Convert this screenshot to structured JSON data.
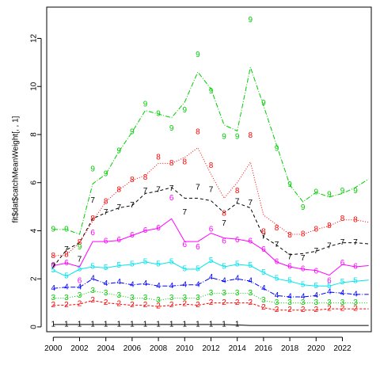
{
  "chart_data": {
    "type": "line",
    "title": "",
    "xlabel": "",
    "ylabel": "fit$dat$catchMeanWeight[, , 1]",
    "xlim": [
      1999.5,
      2024.2
    ],
    "ylim": [
      -0.2,
      13.3
    ],
    "x_ticks": [
      2000,
      2002,
      2004,
      2006,
      2008,
      2010,
      2012,
      2014,
      2016,
      2018,
      2020,
      2022
    ],
    "y_ticks": [
      0,
      2,
      4,
      6,
      8,
      10,
      12
    ],
    "series": [
      {
        "name": "1",
        "color": "#000000",
        "dash": "none",
        "line_x": [
          2000,
          2001,
          2002,
          2003,
          2004,
          2005,
          2006,
          2007,
          2008,
          2009,
          2010,
          2011,
          2012,
          2013,
          2014,
          2015,
          2016,
          2017,
          2018,
          2019,
          2020,
          2021,
          2022,
          2023,
          2024
        ],
        "line_y": [
          0.1,
          0.1,
          0.1,
          0.1,
          0.1,
          0.1,
          0.1,
          0.1,
          0.1,
          0.1,
          0.1,
          0.1,
          0.1,
          0.1,
          0.08,
          0.06,
          0.06,
          0.06,
          0.06,
          0.06,
          0.06,
          0.06,
          0.06,
          0.06,
          0.06
        ],
        "points_x": [
          2000,
          2001,
          2002,
          2003,
          2004,
          2005,
          2006,
          2007,
          2008,
          2009,
          2010,
          2011,
          2012,
          2013,
          2014
        ],
        "points_y": [
          0.1,
          0.1,
          0.1,
          0.1,
          0.1,
          0.1,
          0.1,
          0.1,
          0.1,
          0.1,
          0.1,
          0.1,
          0.1,
          0.1,
          0.1
        ]
      },
      {
        "name": "2",
        "color": "#ff0000",
        "dash": "3,2",
        "line_x": [
          2000,
          2001,
          2002,
          2003,
          2004,
          2005,
          2006,
          2007,
          2008,
          2009,
          2010,
          2011,
          2012,
          2013,
          2014,
          2015,
          2016,
          2017,
          2018,
          2019,
          2020,
          2021,
          2022,
          2023,
          2024
        ],
        "line_y": [
          0.9,
          0.9,
          0.95,
          1.1,
          1.0,
          0.95,
          0.9,
          0.9,
          0.85,
          0.9,
          0.95,
          0.9,
          1.0,
          1.0,
          1.0,
          1.0,
          0.8,
          0.7,
          0.7,
          0.7,
          0.7,
          0.75,
          0.75,
          0.75,
          0.75
        ],
        "points_x": [
          2000,
          2001,
          2002,
          2003,
          2004,
          2005,
          2006,
          2007,
          2008,
          2009,
          2010,
          2011,
          2012,
          2013,
          2014,
          2015,
          2016,
          2017,
          2018,
          2019,
          2020,
          2021,
          2022,
          2023
        ],
        "points_y": [
          0.9,
          0.9,
          0.95,
          1.1,
          1.0,
          0.95,
          0.9,
          0.9,
          0.85,
          0.9,
          0.95,
          0.9,
          1.0,
          1.0,
          1.0,
          1.0,
          0.8,
          0.7,
          0.7,
          0.7,
          0.7,
          0.75,
          0.75,
          0.75
        ]
      },
      {
        "name": "3",
        "color": "#00cd00",
        "dash": "1,2",
        "line_x": [
          2000,
          2001,
          2002,
          2003,
          2004,
          2005,
          2006,
          2007,
          2008,
          2009,
          2010,
          2011,
          2012,
          2013,
          2014,
          2015,
          2016,
          2017,
          2018,
          2019,
          2020,
          2021,
          2022,
          2023,
          2024
        ],
        "line_y": [
          1.2,
          1.2,
          1.3,
          1.5,
          1.4,
          1.3,
          1.2,
          1.2,
          1.1,
          1.2,
          1.2,
          1.2,
          1.4,
          1.4,
          1.4,
          1.4,
          1.1,
          1.0,
          1.0,
          1.0,
          1.0,
          1.0,
          1.0,
          1.0,
          1.0
        ],
        "points_x": [
          2000,
          2001,
          2002,
          2003,
          2004,
          2005,
          2006,
          2007,
          2008,
          2009,
          2010,
          2011,
          2012,
          2013,
          2014,
          2015,
          2016,
          2017,
          2018,
          2019,
          2020,
          2021,
          2022,
          2023
        ],
        "points_y": [
          1.2,
          1.2,
          1.3,
          1.5,
          1.4,
          1.3,
          1.2,
          1.2,
          1.1,
          1.2,
          1.2,
          1.2,
          1.4,
          1.4,
          1.4,
          1.4,
          1.1,
          1.0,
          1.0,
          1.0,
          1.0,
          1.0,
          1.0,
          1.0
        ]
      },
      {
        "name": "4",
        "color": "#0000ff",
        "dash": "6,2,1,2",
        "line_x": [
          2000,
          2001,
          2002,
          2003,
          2004,
          2005,
          2006,
          2007,
          2008,
          2009,
          2010,
          2011,
          2012,
          2013,
          2014,
          2015,
          2016,
          2017,
          2018,
          2019,
          2020,
          2021,
          2022,
          2023,
          2024
        ],
        "line_y": [
          1.6,
          1.65,
          1.65,
          2.0,
          1.8,
          1.85,
          1.75,
          1.8,
          1.7,
          1.7,
          1.75,
          1.75,
          2.05,
          1.9,
          2.0,
          1.9,
          1.6,
          1.3,
          1.25,
          1.25,
          1.3,
          1.45,
          1.4,
          1.35,
          1.35
        ],
        "points_x": [
          2000,
          2001,
          2002,
          2003,
          2004,
          2005,
          2006,
          2007,
          2008,
          2009,
          2010,
          2011,
          2012,
          2013,
          2014,
          2015,
          2016,
          2017,
          2018,
          2019,
          2020,
          2021,
          2022,
          2023
        ],
        "points_y": [
          1.6,
          1.65,
          1.65,
          2.0,
          1.8,
          1.85,
          1.75,
          1.8,
          1.7,
          1.7,
          1.75,
          1.75,
          2.05,
          1.9,
          2.0,
          1.9,
          1.6,
          1.3,
          1.25,
          1.25,
          1.3,
          1.45,
          1.4,
          1.35
        ]
      },
      {
        "name": "5",
        "color": "#00e5ee",
        "dash": "none",
        "line_x": [
          2000,
          2001,
          2002,
          2003,
          2004,
          2005,
          2006,
          2007,
          2008,
          2009,
          2010,
          2011,
          2012,
          2013,
          2014,
          2015,
          2016,
          2017,
          2018,
          2019,
          2020,
          2021,
          2022,
          2023,
          2024
        ],
        "line_y": [
          2.35,
          2.1,
          2.4,
          2.5,
          2.45,
          2.55,
          2.6,
          2.7,
          2.6,
          2.7,
          2.4,
          2.4,
          2.75,
          2.5,
          2.6,
          2.55,
          2.25,
          2.0,
          1.9,
          1.75,
          1.7,
          1.7,
          1.85,
          1.9,
          1.95
        ],
        "points_x": [
          2000,
          2001,
          2002,
          2003,
          2004,
          2005,
          2006,
          2007,
          2008,
          2009,
          2010,
          2011,
          2012,
          2013,
          2014,
          2015,
          2016,
          2017,
          2018,
          2019,
          2020,
          2021,
          2022,
          2023
        ],
        "points_y": [
          2.35,
          2.1,
          2.4,
          2.5,
          2.45,
          2.55,
          2.6,
          2.7,
          2.6,
          2.7,
          2.4,
          2.4,
          2.75,
          2.5,
          2.6,
          2.55,
          2.25,
          2.0,
          1.9,
          1.75,
          1.7,
          1.7,
          1.85,
          1.9
        ]
      },
      {
        "name": "6",
        "color": "#ff00ff",
        "dash": "none",
        "line_x": [
          2000,
          2001,
          2002,
          2003,
          2004,
          2005,
          2006,
          2007,
          2008,
          2009,
          2010,
          2011,
          2012,
          2013,
          2014,
          2015,
          2016,
          2017,
          2018,
          2019,
          2020,
          2021,
          2022,
          2023,
          2024
        ],
        "line_y": [
          2.55,
          2.65,
          2.5,
          3.55,
          3.55,
          3.6,
          3.8,
          4.0,
          4.1,
          4.5,
          3.55,
          3.55,
          3.9,
          3.7,
          3.65,
          3.55,
          3.2,
          2.7,
          2.5,
          2.4,
          2.35,
          2.15,
          2.6,
          2.5,
          2.55
        ],
        "points_x": [
          2000,
          2001,
          2002,
          2003,
          2004,
          2005,
          2006,
          2007,
          2008,
          2009,
          2010,
          2011,
          2012,
          2013,
          2014,
          2015,
          2016,
          2017,
          2018,
          2019,
          2020,
          2021,
          2022,
          2023
        ],
        "points_y": [
          2.55,
          2.65,
          1.9,
          3.9,
          3.55,
          3.6,
          3.8,
          4.0,
          4.1,
          5.35,
          3.4,
          3.3,
          4.05,
          3.55,
          3.6,
          3.55,
          3.2,
          2.7,
          2.5,
          2.4,
          2.3,
          1.9,
          2.65,
          2.5
        ]
      },
      {
        "name": "7",
        "color": "#000000",
        "dash": "4,3",
        "line_x": [
          2000,
          2001,
          2002,
          2003,
          2004,
          2005,
          2006,
          2007,
          2008,
          2009,
          2010,
          2011,
          2012,
          2013,
          2014,
          2015,
          2016,
          2017,
          2018,
          2019,
          2020,
          2021,
          2022,
          2023,
          2024
        ],
        "line_y": [
          2.5,
          3.2,
          3.5,
          4.5,
          4.75,
          4.95,
          5.05,
          5.55,
          5.65,
          5.8,
          5.35,
          5.35,
          5.25,
          4.75,
          5.15,
          4.95,
          3.75,
          3.4,
          3.0,
          3.05,
          3.15,
          3.35,
          3.5,
          3.5,
          3.45
        ],
        "points_x": [
          2000,
          2001,
          2002,
          2003,
          2004,
          2005,
          2006,
          2007,
          2008,
          2009,
          2010,
          2011,
          2012,
          2013,
          2014,
          2015,
          2016,
          2017,
          2018,
          2019,
          2020,
          2021,
          2022,
          2023
        ],
        "points_y": [
          2.5,
          3.2,
          2.8,
          5.25,
          4.75,
          4.95,
          5.05,
          5.65,
          5.7,
          5.75,
          4.75,
          5.8,
          5.7,
          4.3,
          5.2,
          5.15,
          3.75,
          3.4,
          2.9,
          2.85,
          3.15,
          3.35,
          3.5,
          3.5
        ]
      },
      {
        "name": "8",
        "color": "#ff0000",
        "dash": "1,2",
        "line_x": [
          2000,
          2001,
          2002,
          2003,
          2004,
          2005,
          2006,
          2007,
          2008,
          2009,
          2010,
          2011,
          2012,
          2013,
          2014,
          2015,
          2016,
          2017,
          2018,
          2019,
          2020,
          2021,
          2022,
          2023,
          2024
        ],
        "line_y": [
          2.95,
          3.0,
          3.5,
          4.4,
          5.2,
          5.7,
          6.1,
          6.3,
          6.8,
          6.8,
          7.05,
          7.45,
          6.35,
          5.35,
          6.0,
          6.85,
          4.65,
          4.25,
          3.85,
          3.85,
          4.05,
          4.2,
          4.45,
          4.45,
          4.35
        ],
        "points_x": [
          2000,
          2001,
          2002,
          2003,
          2004,
          2005,
          2006,
          2007,
          2008,
          2009,
          2010,
          2011,
          2012,
          2013,
          2014,
          2015,
          2016,
          2017,
          2018,
          2019,
          2020,
          2021,
          2022,
          2023
        ],
        "points_y": [
          2.95,
          3.0,
          3.5,
          4.5,
          5.2,
          5.7,
          6.1,
          6.2,
          7.05,
          6.8,
          6.85,
          8.1,
          6.7,
          4.7,
          5.65,
          7.95,
          3.95,
          4.1,
          3.8,
          3.85,
          4.05,
          4.2,
          4.5,
          4.45
        ]
      },
      {
        "name": "9",
        "color": "#00cd00",
        "dash": "6,2,1,2",
        "line_x": [
          2000,
          2001,
          2002,
          2003,
          2004,
          2005,
          2006,
          2007,
          2008,
          2009,
          2010,
          2011,
          2012,
          2013,
          2014,
          2015,
          2016,
          2017,
          2018,
          2019,
          2020,
          2021,
          2022,
          2023,
          2024
        ],
        "line_y": [
          4.05,
          4.05,
          3.85,
          5.95,
          6.35,
          7.3,
          8.1,
          9.0,
          8.85,
          8.7,
          9.35,
          10.6,
          9.9,
          8.4,
          8.15,
          10.8,
          9.2,
          7.55,
          5.9,
          5.2,
          5.6,
          5.4,
          5.55,
          5.8,
          6.15
        ],
        "points_x": [
          2000,
          2001,
          2002,
          2003,
          2004,
          2005,
          2006,
          2007,
          2008,
          2009,
          2010,
          2011,
          2012,
          2013,
          2014,
          2015,
          2016,
          2017,
          2018,
          2019,
          2020,
          2021,
          2022,
          2023
        ],
        "points_y": [
          4.05,
          4.05,
          3.3,
          6.55,
          6.35,
          7.3,
          8.1,
          9.25,
          8.85,
          8.25,
          9.0,
          11.3,
          9.8,
          7.9,
          7.9,
          12.75,
          9.3,
          7.4,
          5.9,
          4.95,
          5.6,
          5.5,
          5.65,
          5.65
        ]
      }
    ]
  }
}
